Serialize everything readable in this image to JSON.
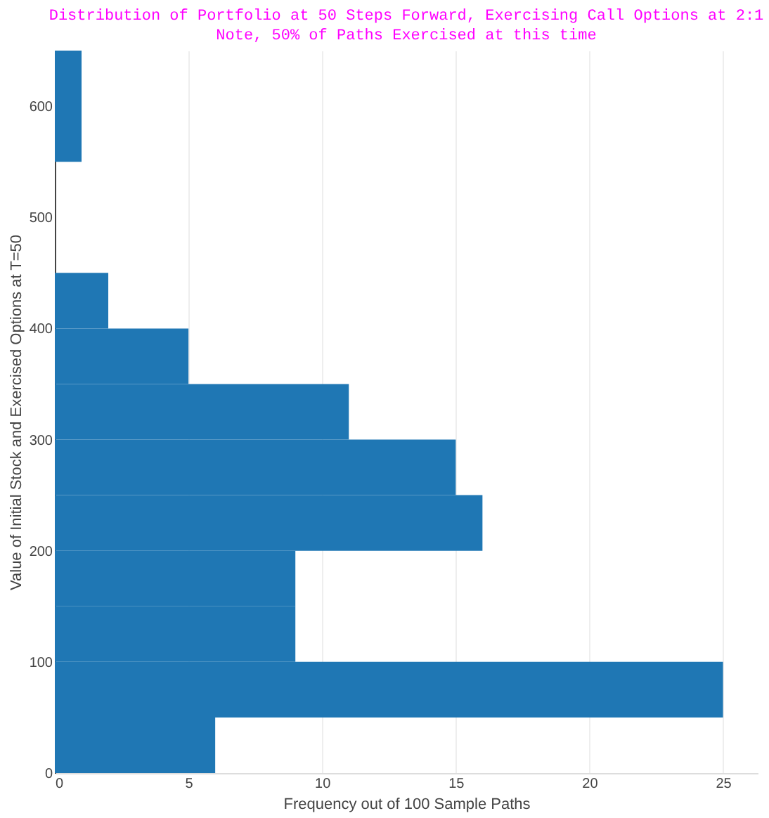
{
  "chart_data": {
    "type": "histogram",
    "orientation": "horizontal",
    "title": "Distribution of Portfolio at 50 Steps Forward, Exercising Call Options at 2:1",
    "subtitle": "Note, 50% of Paths Exercised at this time",
    "xlabel": "Frequency out of 100 Sample Paths",
    "ylabel": "Value of Initial Stock and Exercised Options at T=50",
    "bins": [
      0,
      50,
      100,
      150,
      200,
      250,
      300,
      350,
      400,
      450,
      500,
      550,
      600,
      650
    ],
    "values": [
      6,
      25,
      9,
      9,
      16,
      15,
      11,
      5,
      2,
      0,
      0,
      1,
      1
    ],
    "color": "#1f77b4",
    "xlim": [
      0,
      26.3
    ],
    "xticks": [
      0,
      5,
      10,
      15,
      20,
      25
    ],
    "ylim": [
      0,
      650
    ],
    "yticks": [
      0,
      100,
      200,
      300,
      400,
      500,
      600
    ],
    "grid": "x"
  }
}
